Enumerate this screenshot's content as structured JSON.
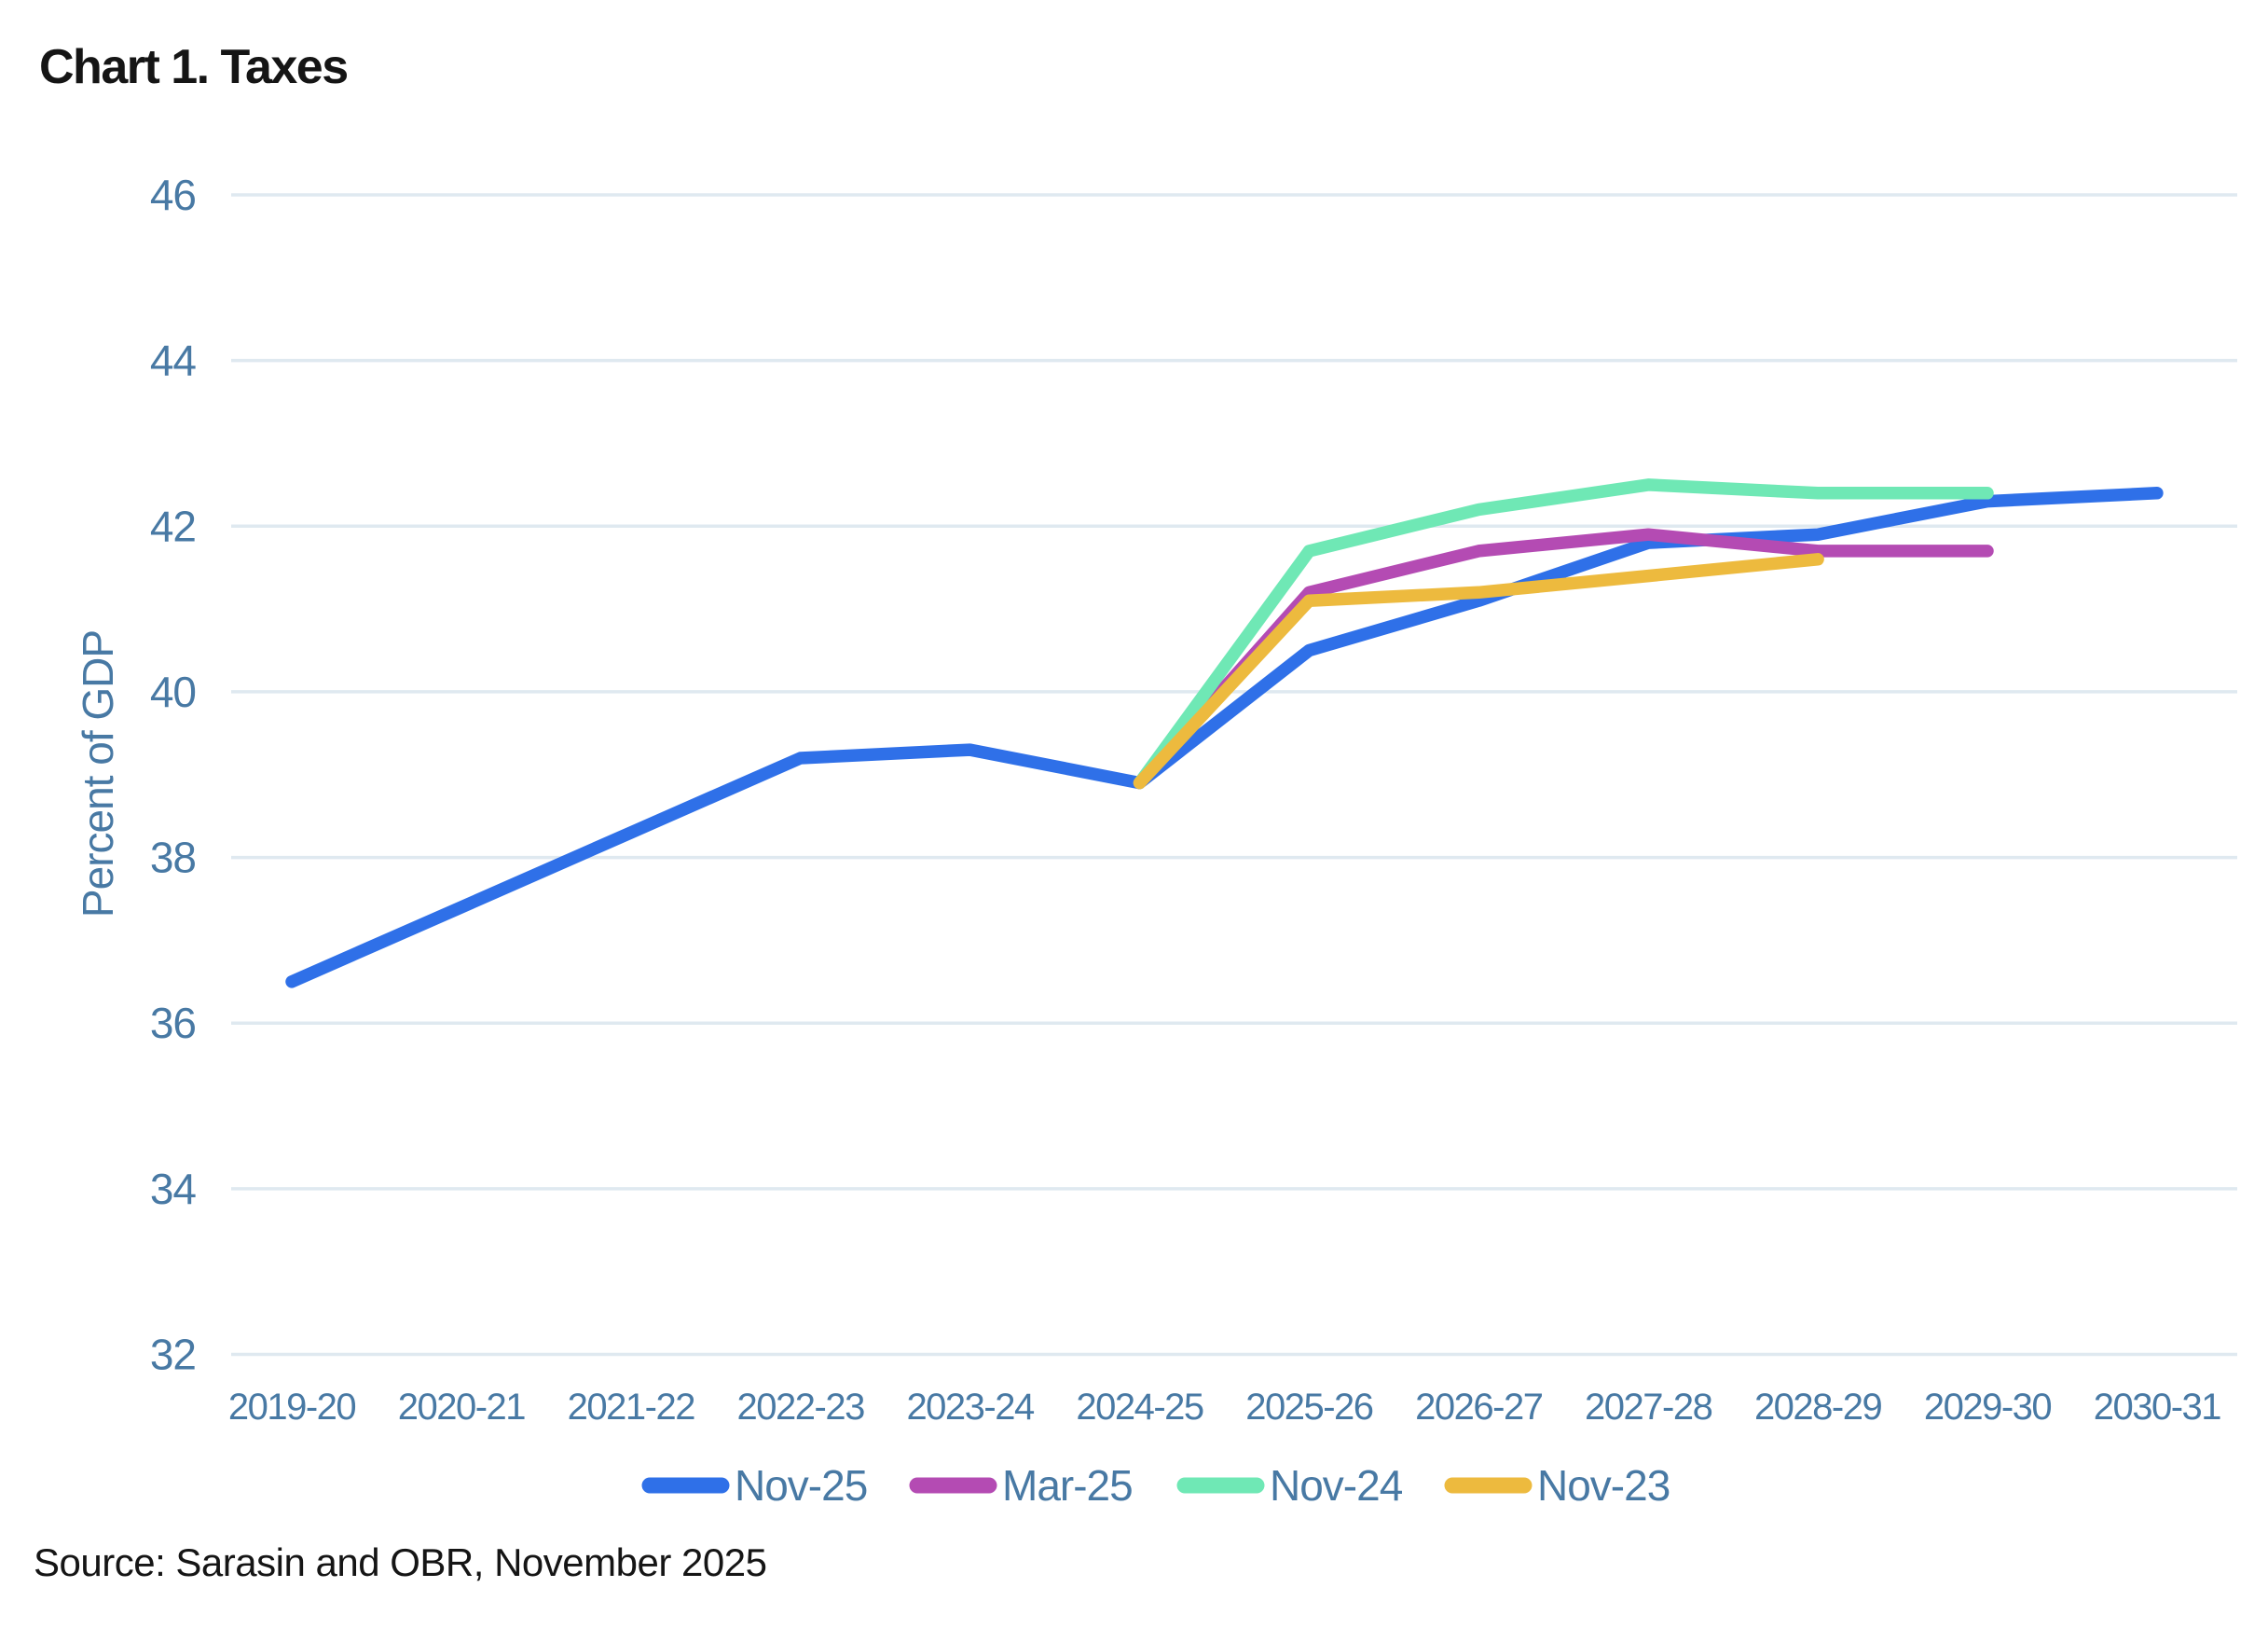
{
  "page": {
    "title": "Chart 1. Taxes",
    "source": "Source: Sarasin and OBR, November 2025"
  },
  "chart_data": {
    "type": "line",
    "title": "Chart 1. Taxes",
    "xlabel": "",
    "ylabel": "Percent of GDP",
    "ylim": [
      32,
      46
    ],
    "yticks": [
      46,
      44,
      42,
      40,
      38,
      36,
      34,
      32
    ],
    "grid": "horizontal-only",
    "legend_position": "bottom-center",
    "axis_text_color": "#4879A4",
    "grid_color": "#DFE9F0",
    "background_color": "#FFFFFF",
    "categories": [
      "2019-20",
      "2020-21",
      "2021-22",
      "2022-23",
      "2023-24",
      "2024-25",
      "2025-26",
      "2026-27",
      "2027-28",
      "2028-29",
      "2029-30",
      "2030-31"
    ],
    "series": [
      {
        "name": "Nov-25",
        "color": "#2F70E8",
        "values": [
          36.5,
          37.4,
          38.3,
          39.2,
          39.3,
          38.9,
          40.5,
          41.1,
          41.8,
          41.9,
          42.3,
          42.4
        ]
      },
      {
        "name": "Mar-25",
        "color": "#B44BB3",
        "values": [
          null,
          null,
          null,
          null,
          null,
          38.9,
          41.2,
          41.7,
          41.9,
          41.7,
          41.7,
          null
        ]
      },
      {
        "name": "Nov-24",
        "color": "#6FE8B5",
        "values": [
          null,
          null,
          null,
          null,
          null,
          38.9,
          41.7,
          42.2,
          42.5,
          42.4,
          42.4,
          null
        ]
      },
      {
        "name": "Nov-23",
        "color": "#EDBA3E",
        "values": [
          null,
          null,
          null,
          null,
          null,
          38.9,
          41.1,
          41.2,
          41.4,
          41.6,
          null,
          null
        ]
      }
    ]
  }
}
